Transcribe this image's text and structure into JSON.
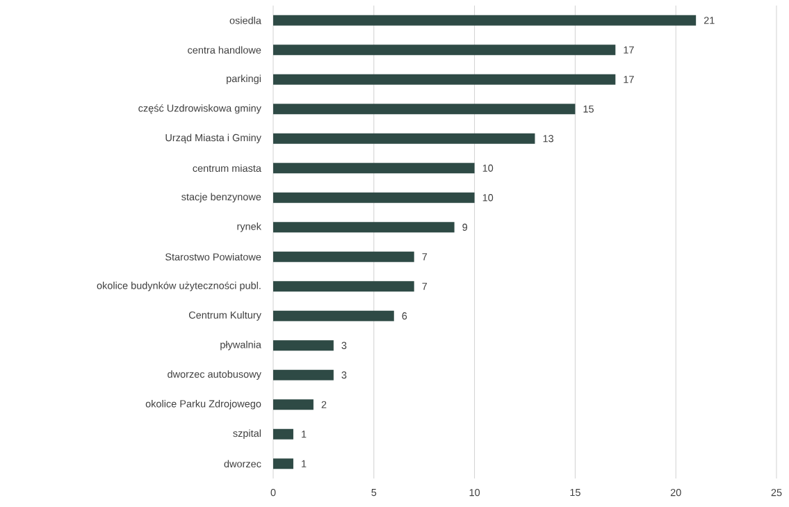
{
  "chart_data": {
    "type": "bar",
    "orientation": "horizontal",
    "categories": [
      "osiedla",
      "centra handlowe",
      "parkingi",
      "część Uzdrowiskowa gminy",
      "Urząd Miasta i Gminy",
      "centrum miasta",
      "stacje benzynowe",
      "rynek",
      "Starostwo Powiatowe",
      "okolice budynków użyteczności publ.",
      "Centrum Kultury",
      "pływalnia",
      "dworzec autobusowy",
      "okolice Parku Zdrojowego",
      "szpital",
      "dworzec"
    ],
    "values": [
      21,
      17,
      17,
      15,
      13,
      10,
      10,
      9,
      7,
      7,
      6,
      3,
      3,
      2,
      1,
      1
    ],
    "color": "#2e4a45",
    "xlim": [
      0,
      25
    ],
    "xticks": [
      0,
      5,
      10,
      15,
      20,
      25
    ],
    "grid": "x",
    "data_labels": true
  }
}
